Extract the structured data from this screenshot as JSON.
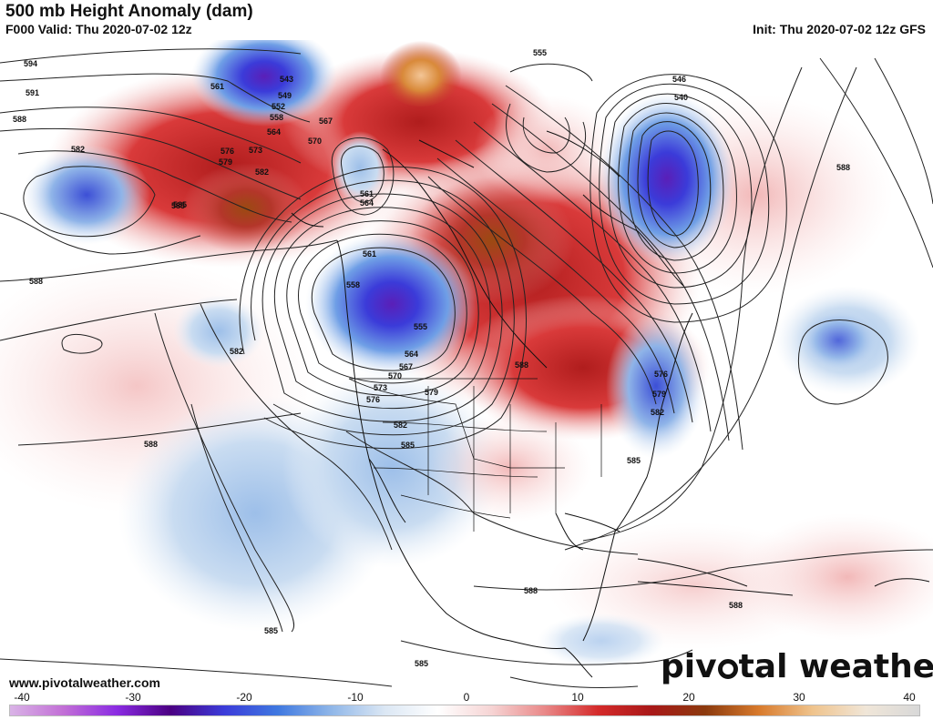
{
  "header": {
    "title": "500 mb Height Anomaly (dam)",
    "valid": "F000 Valid: Thu 2020-07-02 12z",
    "init": "Init: Thu 2020-07-02 12z GFS"
  },
  "footer": {
    "website": "www.pivotalweather.com",
    "logo_text_a": "piv",
    "logo_text_b": "tal weather"
  },
  "colorbar": {
    "ticks": [
      "-40",
      "-30",
      "-20",
      "-10",
      "0",
      "10",
      "20",
      "30",
      "40"
    ],
    "stops": [
      "#d9b3e6",
      "#c26fd6",
      "#8a2be2",
      "#4b0082",
      "#3b3bd9",
      "#3f78e0",
      "#8fb6e8",
      "#dbe7f4",
      "#ffffff",
      "#f6d4d4",
      "#e98888",
      "#d42a2a",
      "#a81818",
      "#8b3a0e",
      "#d87a2c",
      "#efc38c",
      "#f0e6d8",
      "#d8d8d8"
    ]
  },
  "contour_labels": [
    "594",
    "591",
    "588",
    "582",
    "585",
    "561",
    "543",
    "549",
    "552",
    "558",
    "564",
    "570",
    "573",
    "576",
    "579",
    "567",
    "555",
    "546",
    "540",
    "588",
    "582",
    "564",
    "561",
    "582",
    "588",
    "585",
    "588",
    "555",
    "558",
    "561",
    "564",
    "567",
    "570",
    "573",
    "576",
    "579",
    "582",
    "585",
    "588",
    "585",
    "585",
    "588",
    "588",
    "576",
    "579",
    "582",
    "585"
  ]
}
